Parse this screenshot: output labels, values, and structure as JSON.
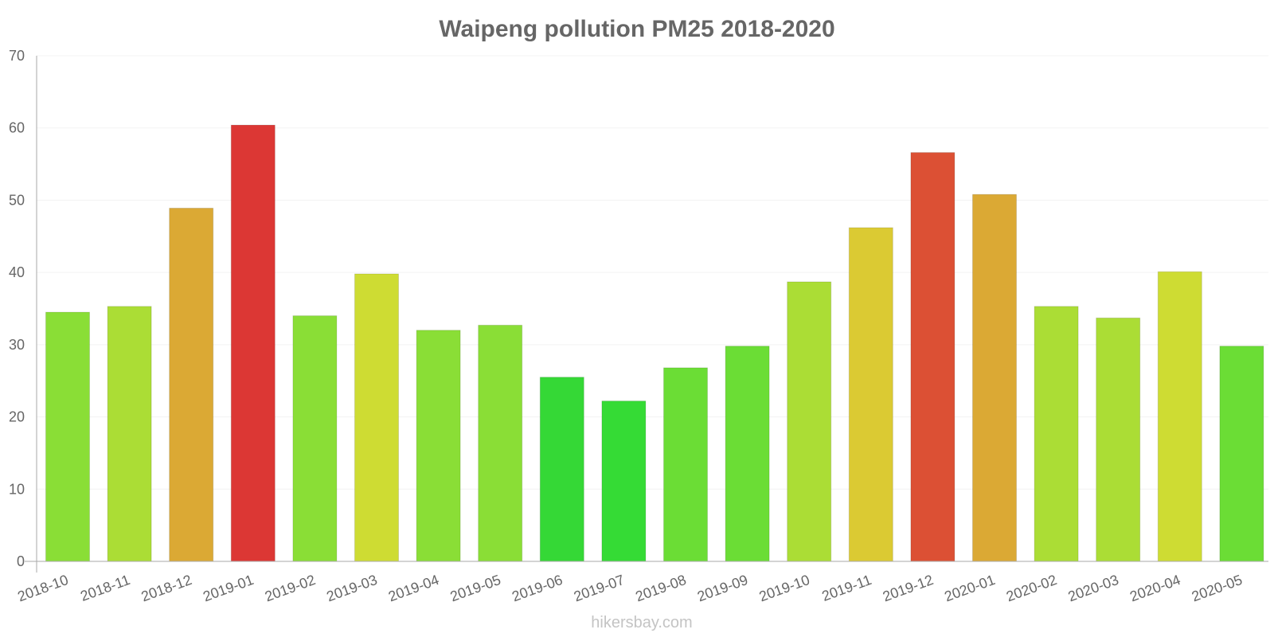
{
  "chart_data": {
    "type": "bar",
    "title": "Waipeng pollution PM25 2018-2020",
    "xlabel": "",
    "ylabel": "",
    "ylim": [
      0,
      70
    ],
    "yticks": [
      0,
      10,
      20,
      30,
      40,
      50,
      60,
      70
    ],
    "grid": true,
    "categories": [
      "2018-10",
      "2018-11",
      "2018-12",
      "2019-01",
      "2019-02",
      "2019-03",
      "2019-04",
      "2019-05",
      "2019-06",
      "2019-07",
      "2019-08",
      "2019-09",
      "2019-10",
      "2019-11",
      "2019-12",
      "2020-01",
      "2020-02",
      "2020-03",
      "2020-04",
      "2020-05"
    ],
    "values": [
      34.5,
      35.3,
      48.9,
      60.4,
      34.0,
      39.8,
      32.0,
      32.7,
      25.5,
      22.2,
      26.8,
      29.8,
      38.7,
      46.2,
      56.6,
      50.8,
      35.3,
      33.7,
      40.1,
      29.8
    ],
    "colors": [
      "#8ade36",
      "#abdd35",
      "#dba934",
      "#dc3734",
      "#8ade36",
      "#cedc33",
      "#8ade36",
      "#8ade36",
      "#35d836",
      "#35db35",
      "#6bdd35",
      "#6bdd35",
      "#abdd35",
      "#dbca33",
      "#dc5034",
      "#dba934",
      "#abdd35",
      "#abdd35",
      "#cedc33",
      "#6bdd35"
    ]
  },
  "footer": "hikersbay.com"
}
